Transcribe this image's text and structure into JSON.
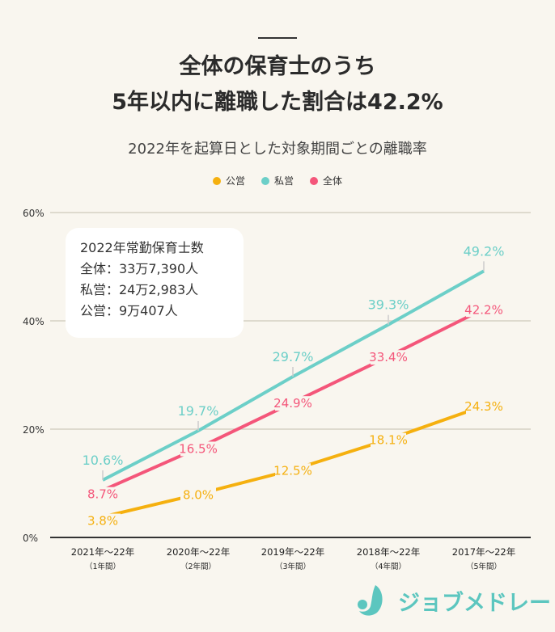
{
  "header": {
    "title_line1": "全体の保育士のうち",
    "title_line2": "5年以内に離職した割合は42.2%",
    "subtitle": "2022年を起算日とした対象期間ごとの離職率"
  },
  "infobox": {
    "heading": "2022年常勤保育士数",
    "lines": [
      "全体：33万7,390人",
      "私営：24万2,983人",
      "公営：9万407人"
    ]
  },
  "logo": {
    "text": "ジョブメドレー"
  },
  "chart_data": {
    "type": "line",
    "title": "2022年を起算日とした対象期間ごとの離職率",
    "categories": [
      "2021年～22年",
      "2020年～22年",
      "2019年～22年",
      "2018年～22年",
      "2017年～22年"
    ],
    "sublabels": [
      "（1年間）",
      "（2年間）",
      "（3年間）",
      "（4年間）",
      "（5年間）"
    ],
    "ylim": [
      0,
      60
    ],
    "yticks": [
      "0%",
      "20%",
      "40%",
      "60%"
    ],
    "grid": true,
    "legend_position": "top-center",
    "series": [
      {
        "name": "公営",
        "color": "#f5b00f",
        "values": [
          3.8,
          8.0,
          12.5,
          18.1,
          24.3
        ],
        "labels": [
          "3.8%",
          "8.0%",
          "12.5%",
          "18.1%",
          "24.3%"
        ]
      },
      {
        "name": "私営",
        "color": "#6ccfc8",
        "values": [
          10.6,
          19.7,
          29.7,
          39.3,
          49.2
        ],
        "labels": [
          "10.6%",
          "19.7%",
          "29.7%",
          "39.3%",
          "49.2%"
        ]
      },
      {
        "name": "全体",
        "color": "#f4567a",
        "values": [
          8.7,
          16.5,
          24.9,
          33.4,
          42.2
        ],
        "labels": [
          "8.7%",
          "16.5%",
          "24.9%",
          "33.4%",
          "42.2%"
        ]
      }
    ]
  }
}
